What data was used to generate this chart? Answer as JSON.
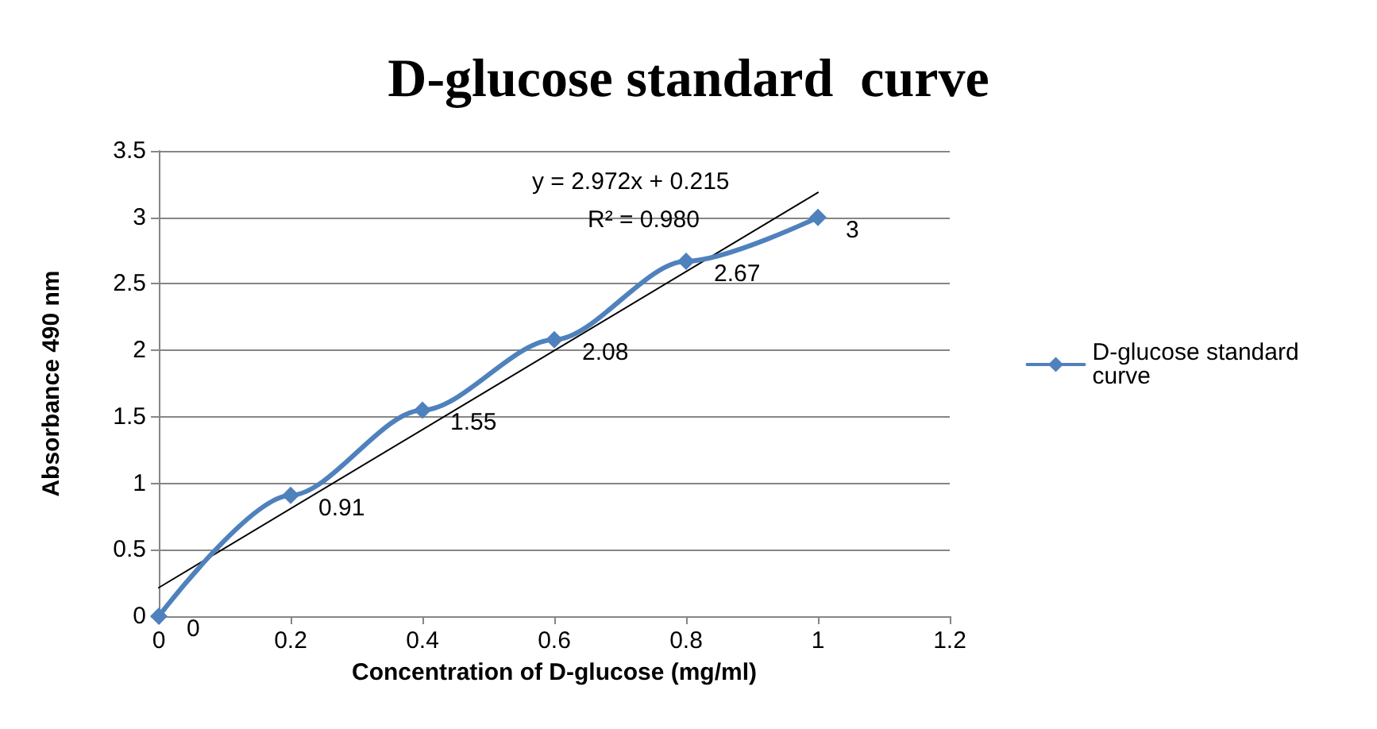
{
  "chart_data": {
    "type": "line",
    "title": "D-glucose standard  curve",
    "xlabel": "Concentration of D-glucose (mg/ml)",
    "ylabel": "Absorbance 490 nm",
    "x": [
      0,
      0.2,
      0.4,
      0.6,
      0.8,
      1
    ],
    "series": [
      {
        "name": "D-glucose standard curve",
        "color": "#4f81bd",
        "values": [
          0,
          0.91,
          1.55,
          2.08,
          2.67,
          3
        ],
        "marker": "diamond",
        "data_labels": true
      },
      {
        "type": "line",
        "color": "#000000",
        "x": [
          0,
          1
        ],
        "values": [
          0.215,
          3.187
        ],
        "marker": "none"
      }
    ],
    "annotations": [
      "y = 2.972x + 0.215",
      "R² = 0.980"
    ],
    "xlim": [
      0,
      1.2
    ],
    "xticks": [
      0,
      0.2,
      0.4,
      0.6,
      0.8,
      1,
      1.2
    ],
    "ylim": [
      0,
      3.5
    ],
    "yticks": [
      0,
      0.5,
      1,
      1.5,
      2,
      2.5,
      3,
      3.5
    ],
    "grid": "y",
    "legend": "right"
  }
}
